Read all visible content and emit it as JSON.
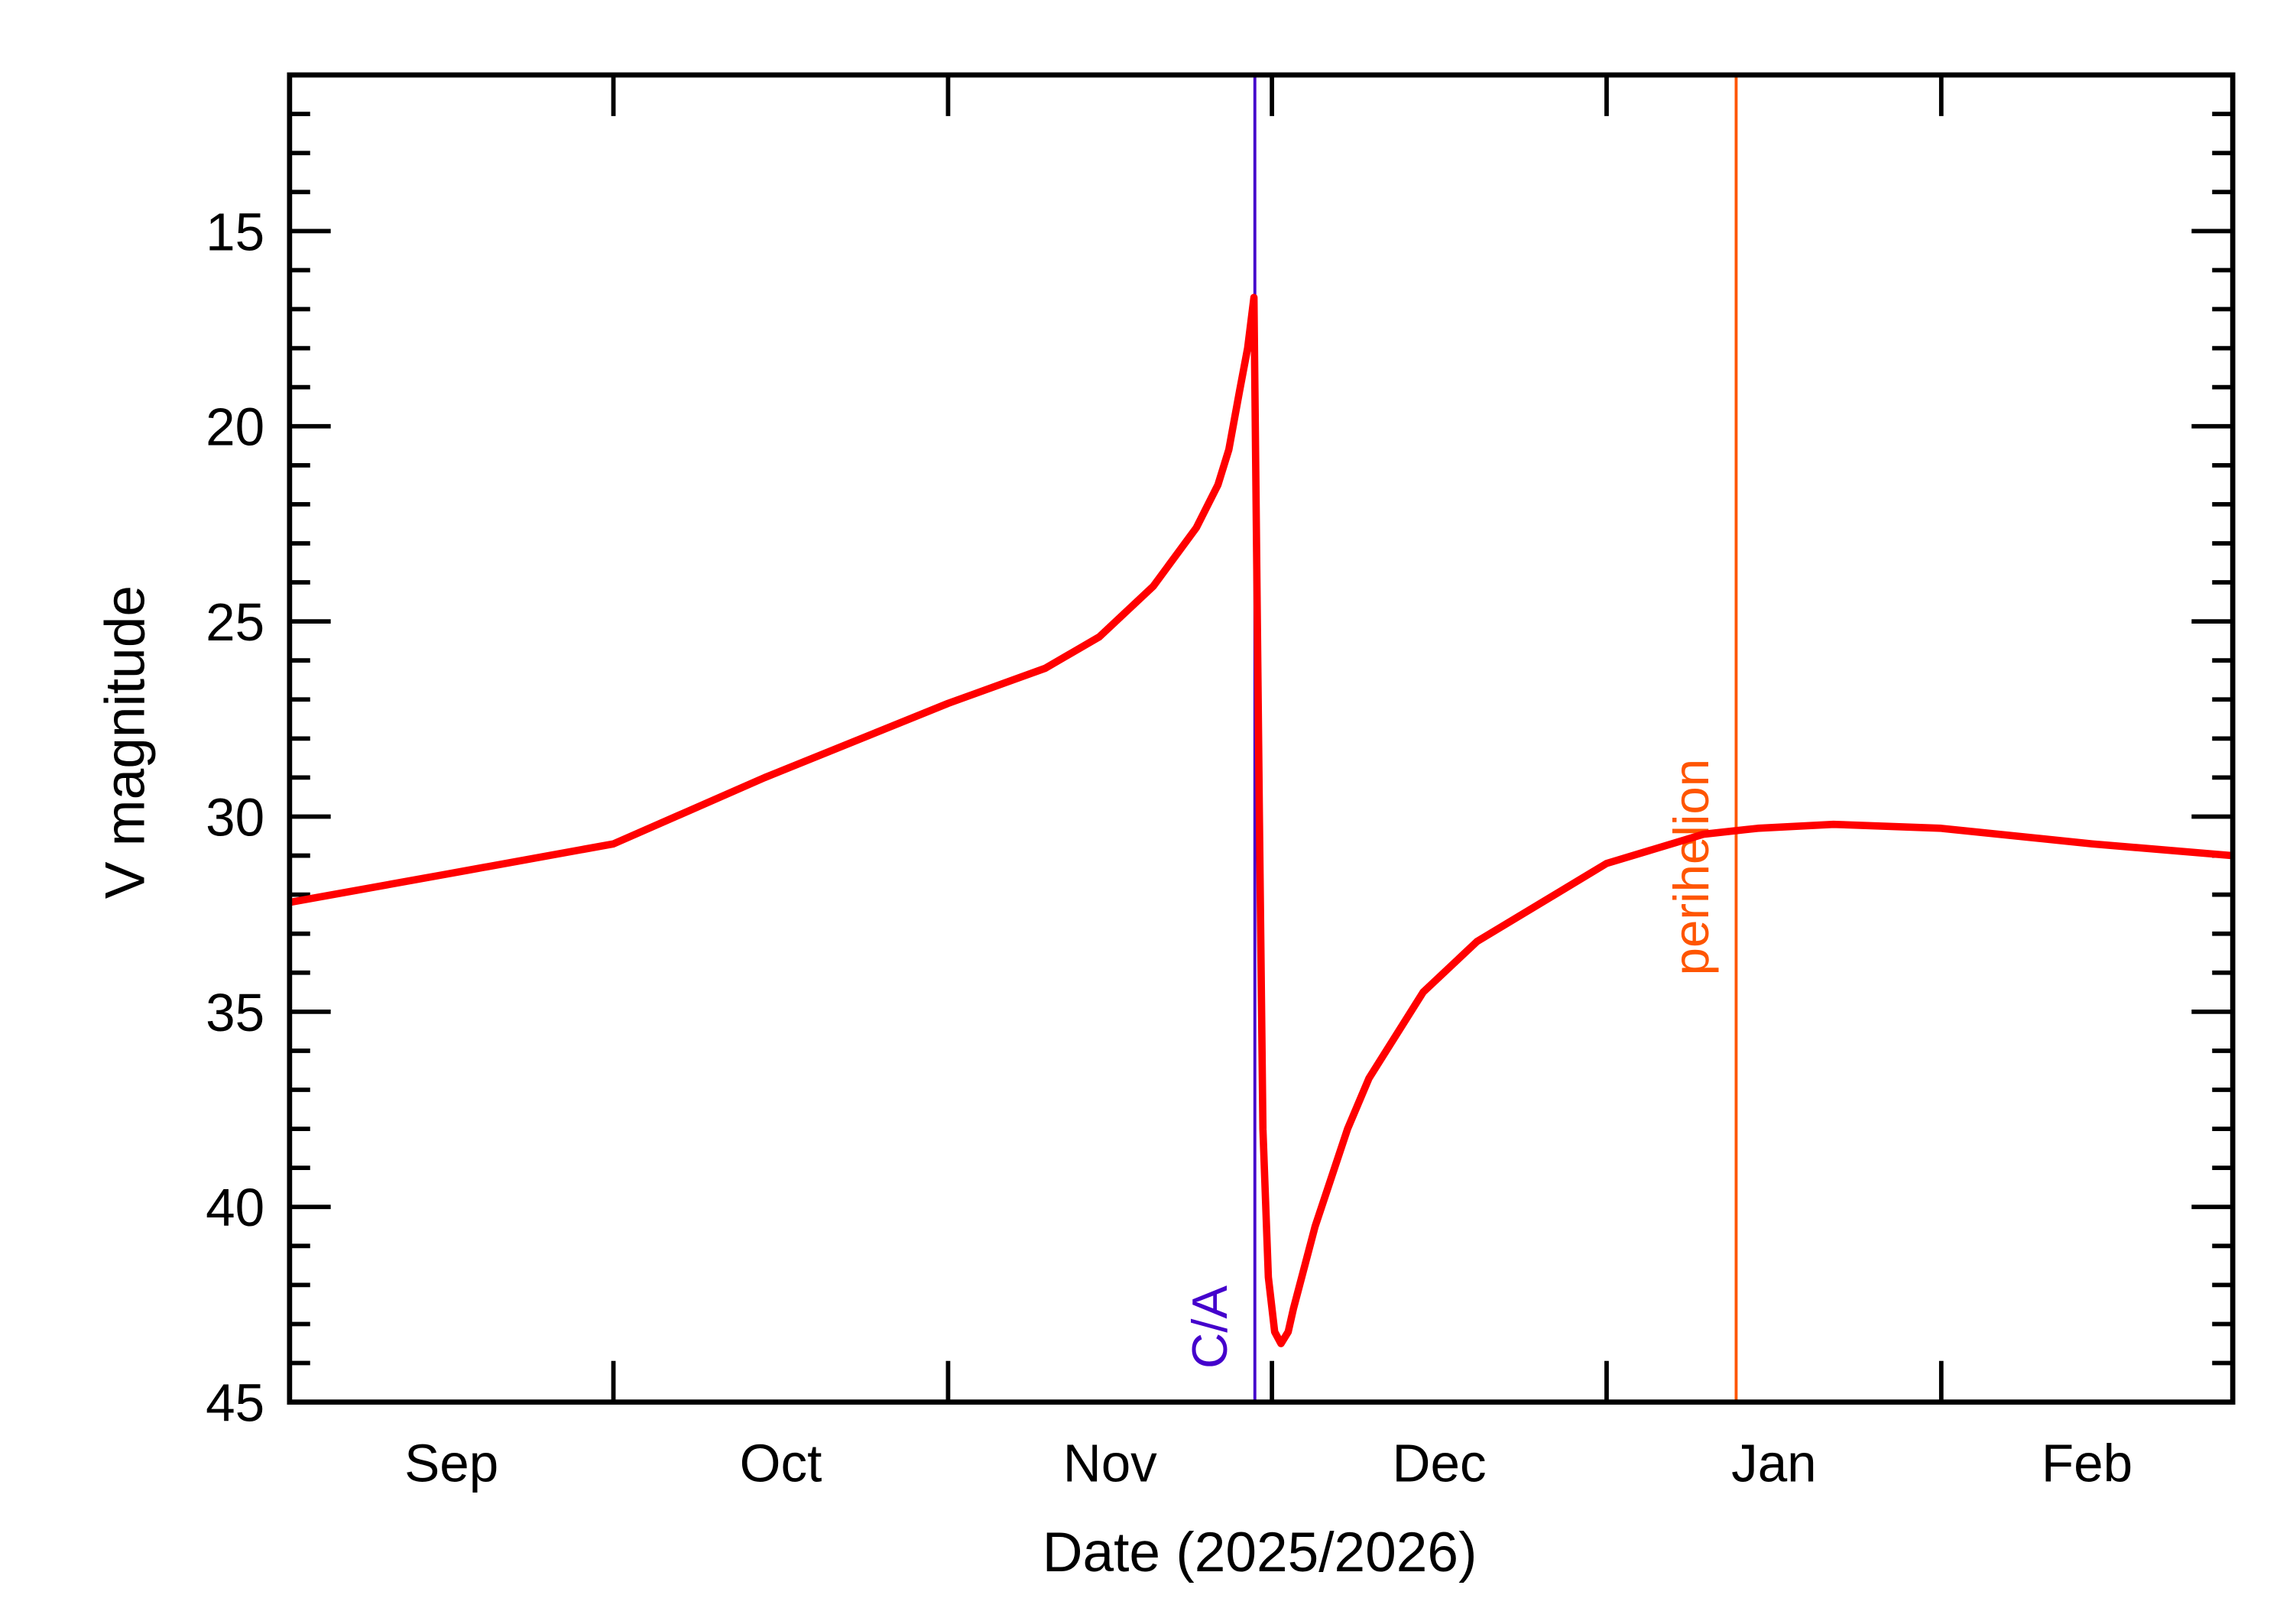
{
  "chart_data": {
    "type": "line",
    "title": "",
    "xlabel": "Date (2025/2026)",
    "ylabel": "V magnitude",
    "xlim": [
      "2025-09-01",
      "2026-02-28"
    ],
    "ylim": [
      45,
      11
    ],
    "y_inverted": true,
    "grid": false,
    "x_tick_labels": [
      "Sep",
      "Oct",
      "Nov",
      "Dec",
      "Jan",
      "Feb"
    ],
    "x_month_starts": [
      "2025-09-01",
      "2025-10-01",
      "2025-11-01",
      "2025-12-01",
      "2026-01-01",
      "2026-02-01",
      "2026-03-01"
    ],
    "y_ticks": [
      15,
      20,
      25,
      30,
      35,
      40,
      45
    ],
    "y_minor_step": 1,
    "series": [
      {
        "color": "#ff0000",
        "points": [
          [
            "2025-09-01",
            32.2
          ],
          [
            "2025-09-15",
            31.5
          ],
          [
            "2025-10-01",
            30.7
          ],
          [
            "2025-10-15",
            29.0
          ],
          [
            "2025-11-01",
            27.1
          ],
          [
            "2025-11-10",
            26.2
          ],
          [
            "2025-11-15",
            25.4
          ],
          [
            "2025-11-20",
            24.1
          ],
          [
            "2025-11-24",
            22.6
          ],
          [
            "2025-11-26",
            21.5
          ],
          [
            "2025-11-27",
            20.6
          ],
          [
            "2025-11-28",
            19.1
          ],
          [
            "2025-11-28T18:00",
            18.0
          ],
          [
            "2025-11-29T08:00",
            16.7
          ],
          [
            "2025-11-29T20:00",
            30.0
          ],
          [
            "2025-11-30T04:00",
            38.0
          ],
          [
            "2025-11-30T16:00",
            41.8
          ],
          [
            "2025-12-01T06:00",
            43.2
          ],
          [
            "2025-12-01T20:00",
            43.5
          ],
          [
            "2025-12-02T12:00",
            43.2
          ],
          [
            "2025-12-03",
            42.6
          ],
          [
            "2025-12-05",
            40.5
          ],
          [
            "2025-12-08",
            38.0
          ],
          [
            "2025-12-10",
            36.7
          ],
          [
            "2025-12-15",
            34.5
          ],
          [
            "2025-12-20",
            33.2
          ],
          [
            "2026-01-01",
            31.2
          ],
          [
            "2026-01-10",
            30.45
          ],
          [
            "2026-01-15",
            30.3
          ],
          [
            "2026-01-22",
            30.2
          ],
          [
            "2026-02-01",
            30.3
          ],
          [
            "2026-02-15",
            30.7
          ],
          [
            "2026-02-28",
            31.0
          ]
        ]
      }
    ],
    "annotations": [
      {
        "label": "C/A",
        "date": "2025-11-29T10:00",
        "color": "#4400cc"
      },
      {
        "label": "perihelion",
        "date": "2026-01-13",
        "color": "#ff5500"
      }
    ]
  }
}
